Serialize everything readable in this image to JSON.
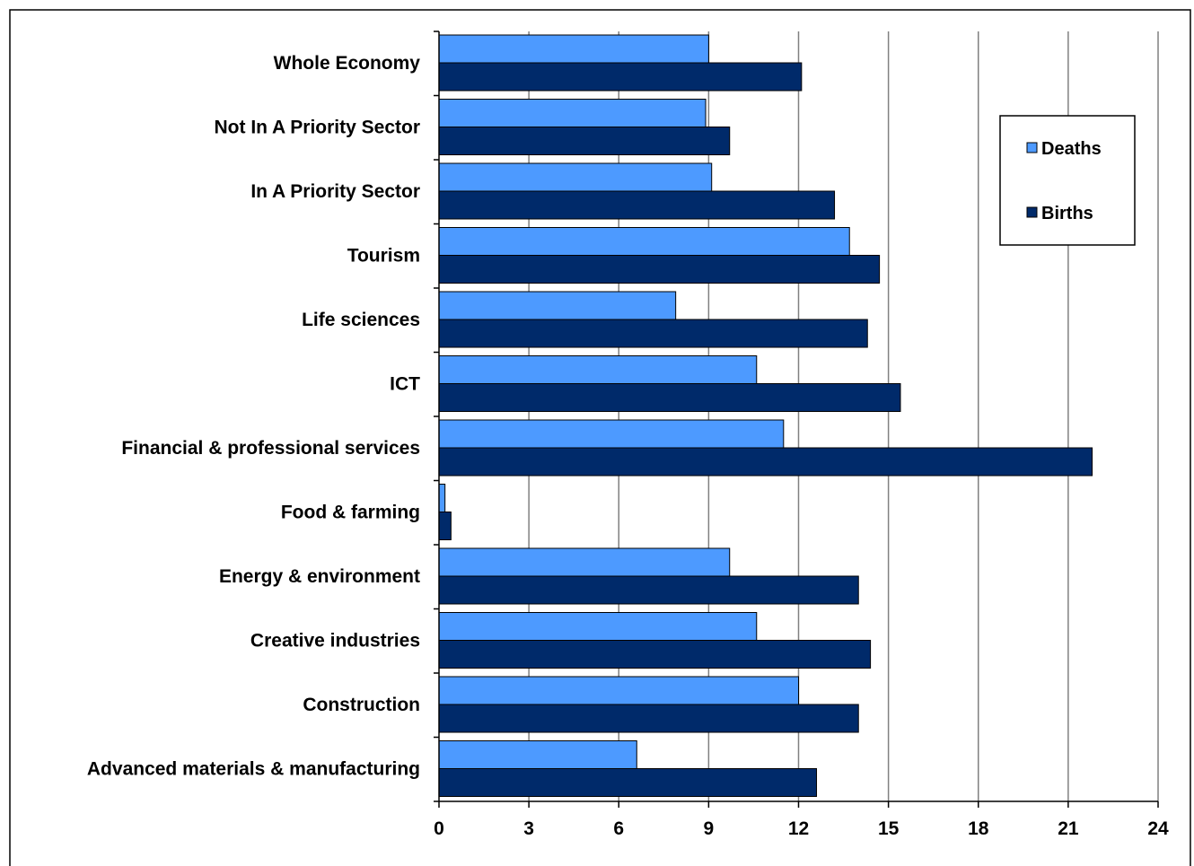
{
  "chart_data": {
    "type": "bar",
    "orientation": "horizontal",
    "categories": [
      "Whole Economy",
      "Not In A Priority Sector",
      "In A Priority Sector",
      "Tourism",
      "Life sciences",
      "ICT",
      "Financial & professional services",
      "Food & farming",
      "Energy & environment",
      "Creative industries",
      "Construction",
      "Advanced materials & manufacturing"
    ],
    "series": [
      {
        "name": "Deaths",
        "color": "#4D9AFF",
        "values": [
          9.0,
          8.9,
          9.1,
          13.7,
          7.9,
          10.6,
          11.5,
          0.2,
          9.7,
          10.6,
          12.0,
          6.6
        ]
      },
      {
        "name": "Births",
        "color": "#002A6A",
        "values": [
          12.1,
          9.7,
          13.2,
          14.7,
          14.3,
          15.4,
          21.8,
          0.4,
          14.0,
          14.4,
          14.0,
          12.6
        ]
      }
    ],
    "xlim": [
      0,
      24
    ],
    "xticks": [
      "0",
      "3",
      "6",
      "9",
      "12",
      "15",
      "18",
      "21",
      "24"
    ],
    "grid": "vertical",
    "legend_position": "right"
  }
}
